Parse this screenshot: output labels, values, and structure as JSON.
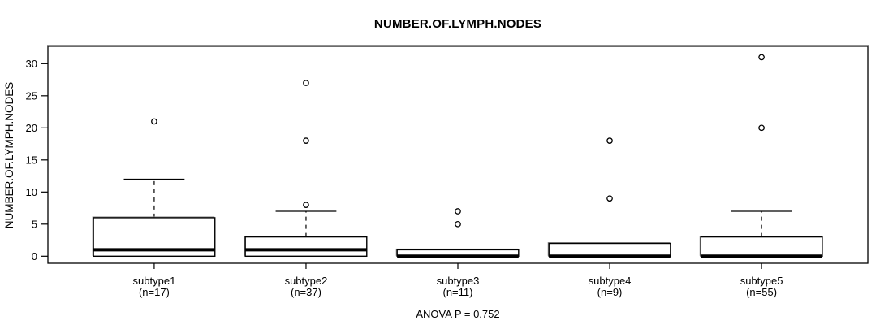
{
  "chart_data": {
    "type": "box",
    "title": "NUMBER.OF.LYMPH.NODES",
    "ylabel": "NUMBER.OF.LYMPH.NODES",
    "xlabel": "",
    "annotation": "ANOVA P = 0.752",
    "yticks": [
      0,
      5,
      10,
      15,
      20,
      25,
      30
    ],
    "ylim": [
      -1.1,
      32.7
    ],
    "xlim": [
      0.3,
      5.7
    ],
    "grid": false,
    "legend": "none",
    "groups": [
      {
        "label": "subtype1",
        "sublabel": "(n=17)",
        "n": 17,
        "whisker_low": 0,
        "q1": 0,
        "median": 1,
        "q3": 6,
        "whisker_high": 12,
        "outliers": [
          21
        ]
      },
      {
        "label": "subtype2",
        "sublabel": "(n=37)",
        "n": 37,
        "whisker_low": 0,
        "q1": 0,
        "median": 1,
        "q3": 3,
        "whisker_high": 7,
        "outliers": [
          8,
          18,
          27
        ]
      },
      {
        "label": "subtype3",
        "sublabel": "(n=11)",
        "n": 11,
        "whisker_low": 0,
        "q1": 0,
        "median": 0,
        "q3": 1,
        "whisker_high": 1,
        "outliers": [
          5,
          7
        ]
      },
      {
        "label": "subtype4",
        "sublabel": "(n=9)",
        "n": 9,
        "whisker_low": 0,
        "q1": 0,
        "median": 0,
        "q3": 2,
        "whisker_high": 2,
        "outliers": [
          9,
          18
        ]
      },
      {
        "label": "subtype5",
        "sublabel": "(n=55)",
        "n": 55,
        "whisker_low": 0,
        "q1": 0,
        "median": 0,
        "q3": 3,
        "whisker_high": 7,
        "outliers": [
          20,
          31
        ]
      }
    ],
    "colors": {
      "line": "#000000",
      "box_fill": "#ffffff",
      "frame_shadow": "#909090",
      "background": "#ffffff"
    }
  }
}
